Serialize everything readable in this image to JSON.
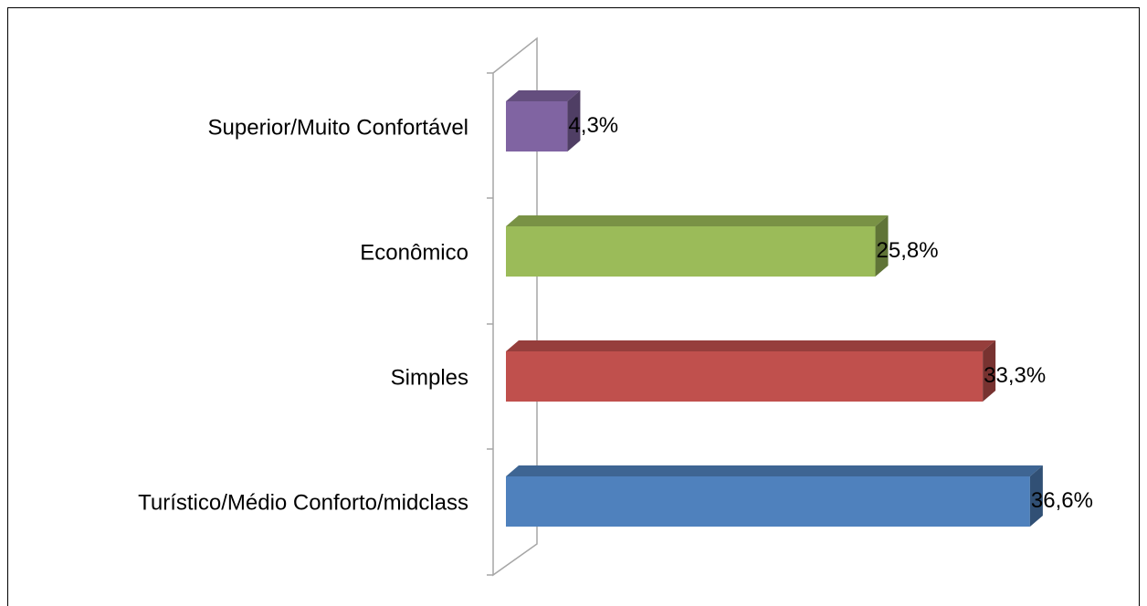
{
  "chart_data": {
    "type": "bar",
    "orientation": "horizontal",
    "style": "3d",
    "categories": [
      "Turístico/Médio Conforto/midclass",
      "Simples",
      "Econômico",
      "Superior/Muito Confortável"
    ],
    "values": [
      36.6,
      33.3,
      25.8,
      4.3
    ],
    "data_labels": [
      "36,6%",
      "33,3%",
      "25,8%",
      "4,3%"
    ],
    "colors": [
      "#4f81bd",
      "#c0504d",
      "#9bbb59",
      "#8064a2"
    ],
    "title": "",
    "xlabel": "",
    "ylabel": "",
    "xlim": [
      0,
      40
    ],
    "grid": false,
    "legend": "none"
  }
}
